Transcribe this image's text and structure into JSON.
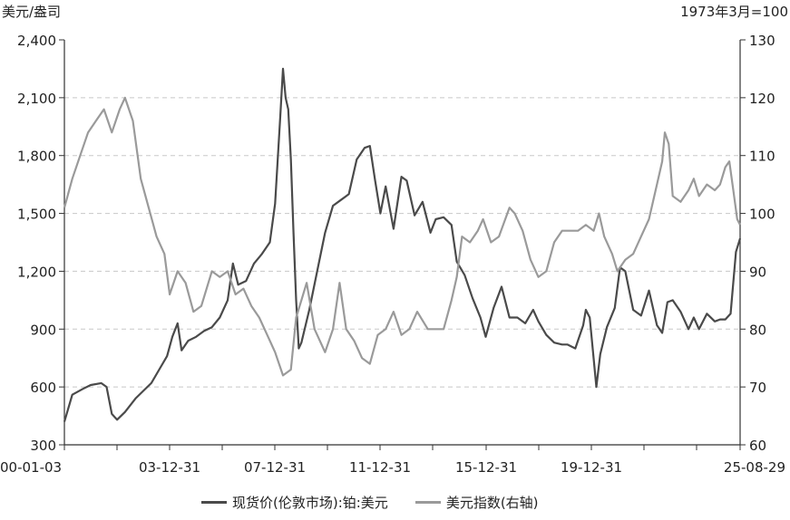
{
  "chart_data": {
    "type": "line",
    "left_axis_unit": "美元/盎司",
    "right_axis_unit": "1973年3月=100",
    "x_tick_labels": [
      "00-01-03",
      "03-12-31",
      "07-12-31",
      "11-12-31",
      "15-12-31",
      "19-12-31",
      "25-08-29"
    ],
    "y_left": {
      "min": 300,
      "max": 2400,
      "ticks": [
        "2,400",
        "2,100",
        "1,800",
        "1,500",
        "1,200",
        "900",
        "600",
        "300"
      ]
    },
    "y_right": {
      "min": 60,
      "max": 130,
      "ticks": [
        "130",
        "120",
        "110",
        "100",
        "90",
        "80",
        "70",
        "60"
      ]
    },
    "grid": true,
    "legend_placement": "bottom",
    "series": [
      {
        "name": "现货价(伦敦市场):铂:美元",
        "axis": "left",
        "color": "#4a4a4a",
        "points": [
          [
            2000.0,
            420
          ],
          [
            2000.3,
            560
          ],
          [
            2000.7,
            590
          ],
          [
            2001.0,
            610
          ],
          [
            2001.4,
            620
          ],
          [
            2001.6,
            600
          ],
          [
            2001.8,
            460
          ],
          [
            2002.0,
            430
          ],
          [
            2002.3,
            470
          ],
          [
            2002.7,
            540
          ],
          [
            2003.0,
            580
          ],
          [
            2003.3,
            620
          ],
          [
            2003.6,
            690
          ],
          [
            2003.9,
            760
          ],
          [
            2004.1,
            860
          ],
          [
            2004.3,
            930
          ],
          [
            2004.45,
            790
          ],
          [
            2004.7,
            840
          ],
          [
            2005.0,
            860
          ],
          [
            2005.3,
            890
          ],
          [
            2005.6,
            910
          ],
          [
            2005.9,
            960
          ],
          [
            2006.2,
            1050
          ],
          [
            2006.4,
            1240
          ],
          [
            2006.6,
            1130
          ],
          [
            2006.9,
            1150
          ],
          [
            2007.2,
            1240
          ],
          [
            2007.5,
            1290
          ],
          [
            2007.8,
            1350
          ],
          [
            2008.0,
            1550
          ],
          [
            2008.1,
            1780
          ],
          [
            2008.2,
            2010
          ],
          [
            2008.3,
            2250
          ],
          [
            2008.4,
            2100
          ],
          [
            2008.5,
            2040
          ],
          [
            2008.6,
            1780
          ],
          [
            2008.7,
            1400
          ],
          [
            2008.8,
            1050
          ],
          [
            2008.9,
            800
          ],
          [
            2009.0,
            830
          ],
          [
            2009.3,
            1000
          ],
          [
            2009.6,
            1200
          ],
          [
            2009.9,
            1400
          ],
          [
            2010.2,
            1540
          ],
          [
            2010.5,
            1570
          ],
          [
            2010.8,
            1600
          ],
          [
            2011.1,
            1780
          ],
          [
            2011.4,
            1840
          ],
          [
            2011.6,
            1850
          ],
          [
            2011.8,
            1670
          ],
          [
            2012.0,
            1500
          ],
          [
            2012.2,
            1640
          ],
          [
            2012.5,
            1420
          ],
          [
            2012.8,
            1690
          ],
          [
            2013.0,
            1670
          ],
          [
            2013.3,
            1490
          ],
          [
            2013.6,
            1560
          ],
          [
            2013.9,
            1400
          ],
          [
            2014.1,
            1470
          ],
          [
            2014.4,
            1480
          ],
          [
            2014.7,
            1440
          ],
          [
            2014.9,
            1250
          ],
          [
            2015.2,
            1180
          ],
          [
            2015.5,
            1060
          ],
          [
            2015.8,
            960
          ],
          [
            2016.0,
            860
          ],
          [
            2016.3,
            1010
          ],
          [
            2016.6,
            1120
          ],
          [
            2016.9,
            960
          ],
          [
            2017.2,
            960
          ],
          [
            2017.5,
            930
          ],
          [
            2017.8,
            1000
          ],
          [
            2018.0,
            940
          ],
          [
            2018.3,
            870
          ],
          [
            2018.6,
            830
          ],
          [
            2018.9,
            820
          ],
          [
            2019.1,
            820
          ],
          [
            2019.4,
            800
          ],
          [
            2019.7,
            920
          ],
          [
            2019.8,
            1000
          ],
          [
            2019.95,
            960
          ],
          [
            2020.2,
            600
          ],
          [
            2020.35,
            770
          ],
          [
            2020.6,
            910
          ],
          [
            2020.9,
            1010
          ],
          [
            2021.1,
            1220
          ],
          [
            2021.3,
            1200
          ],
          [
            2021.6,
            1000
          ],
          [
            2021.9,
            970
          ],
          [
            2022.2,
            1100
          ],
          [
            2022.5,
            920
          ],
          [
            2022.7,
            880
          ],
          [
            2022.9,
            1040
          ],
          [
            2023.1,
            1050
          ],
          [
            2023.4,
            990
          ],
          [
            2023.7,
            900
          ],
          [
            2023.9,
            960
          ],
          [
            2024.1,
            900
          ],
          [
            2024.4,
            980
          ],
          [
            2024.7,
            940
          ],
          [
            2024.9,
            950
          ],
          [
            2025.1,
            950
          ],
          [
            2025.3,
            980
          ],
          [
            2025.5,
            1300
          ],
          [
            2025.66,
            1370
          ]
        ]
      },
      {
        "name": "美元指数(右轴)",
        "axis": "right",
        "color": "#9a9a9a",
        "points": [
          [
            2000.0,
            101
          ],
          [
            2000.3,
            106
          ],
          [
            2000.6,
            110
          ],
          [
            2000.9,
            114
          ],
          [
            2001.2,
            116
          ],
          [
            2001.5,
            118
          ],
          [
            2001.8,
            114
          ],
          [
            2002.1,
            118
          ],
          [
            2002.3,
            120
          ],
          [
            2002.6,
            116
          ],
          [
            2002.9,
            106
          ],
          [
            2003.2,
            101
          ],
          [
            2003.5,
            96
          ],
          [
            2003.8,
            93
          ],
          [
            2004.0,
            86
          ],
          [
            2004.3,
            90
          ],
          [
            2004.6,
            88
          ],
          [
            2004.9,
            83
          ],
          [
            2005.2,
            84
          ],
          [
            2005.6,
            90
          ],
          [
            2005.9,
            89
          ],
          [
            2006.2,
            90
          ],
          [
            2006.5,
            86
          ],
          [
            2006.8,
            87
          ],
          [
            2007.1,
            84
          ],
          [
            2007.4,
            82
          ],
          [
            2007.7,
            79
          ],
          [
            2008.0,
            76
          ],
          [
            2008.3,
            72
          ],
          [
            2008.6,
            73
          ],
          [
            2008.8,
            82
          ],
          [
            2009.0,
            85
          ],
          [
            2009.2,
            88
          ],
          [
            2009.5,
            80
          ],
          [
            2009.9,
            76
          ],
          [
            2010.2,
            80
          ],
          [
            2010.45,
            88
          ],
          [
            2010.7,
            80
          ],
          [
            2011.0,
            78
          ],
          [
            2011.3,
            75
          ],
          [
            2011.6,
            74
          ],
          [
            2011.9,
            79
          ],
          [
            2012.2,
            80
          ],
          [
            2012.5,
            83
          ],
          [
            2012.8,
            79
          ],
          [
            2013.1,
            80
          ],
          [
            2013.4,
            83
          ],
          [
            2013.8,
            80
          ],
          [
            2014.1,
            80
          ],
          [
            2014.4,
            80
          ],
          [
            2014.7,
            85
          ],
          [
            2014.9,
            89
          ],
          [
            2015.1,
            96
          ],
          [
            2015.4,
            95
          ],
          [
            2015.7,
            97
          ],
          [
            2015.9,
            99
          ],
          [
            2016.2,
            95
          ],
          [
            2016.5,
            96
          ],
          [
            2016.9,
            101
          ],
          [
            2017.1,
            100
          ],
          [
            2017.4,
            97
          ],
          [
            2017.7,
            92
          ],
          [
            2018.0,
            89
          ],
          [
            2018.3,
            90
          ],
          [
            2018.6,
            95
          ],
          [
            2018.9,
            97
          ],
          [
            2019.2,
            97
          ],
          [
            2019.5,
            97
          ],
          [
            2019.8,
            98
          ],
          [
            2020.1,
            97
          ],
          [
            2020.3,
            100
          ],
          [
            2020.5,
            96
          ],
          [
            2020.8,
            93
          ],
          [
            2021.0,
            90
          ],
          [
            2021.3,
            92
          ],
          [
            2021.6,
            93
          ],
          [
            2021.9,
            96
          ],
          [
            2022.2,
            99
          ],
          [
            2022.5,
            105
          ],
          [
            2022.7,
            109
          ],
          [
            2022.8,
            114
          ],
          [
            2022.95,
            112
          ],
          [
            2023.1,
            103
          ],
          [
            2023.4,
            102
          ],
          [
            2023.7,
            104
          ],
          [
            2023.9,
            106
          ],
          [
            2024.1,
            103
          ],
          [
            2024.4,
            105
          ],
          [
            2024.7,
            104
          ],
          [
            2024.9,
            105
          ],
          [
            2025.1,
            108
          ],
          [
            2025.25,
            109
          ],
          [
            2025.4,
            104
          ],
          [
            2025.55,
            99
          ],
          [
            2025.66,
            98
          ]
        ]
      }
    ]
  }
}
